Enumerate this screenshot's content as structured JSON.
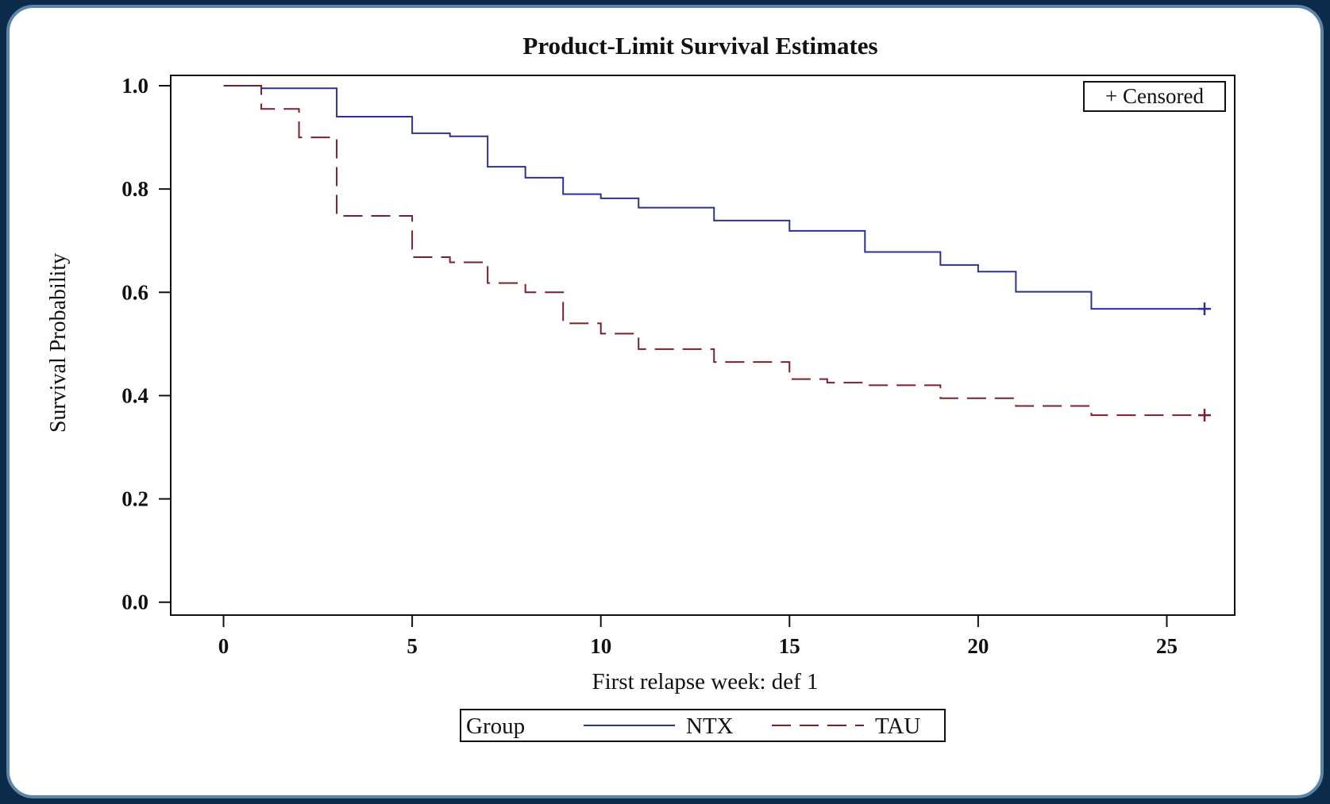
{
  "chart_data": {
    "type": "line",
    "title": "Product-Limit Survival Estimates",
    "xlabel": "First relapse week: def 1",
    "ylabel": "Survival Probability",
    "xlim": [
      -1.4,
      26.8
    ],
    "ylim": [
      -0.025,
      1.02
    ],
    "xticks": [
      "0",
      "5",
      "10",
      "15",
      "20",
      "25"
    ],
    "yticks": [
      "0.0",
      "0.2",
      "0.4",
      "0.6",
      "0.8",
      "1.0"
    ],
    "grid": false,
    "step": true,
    "censored_legend": "+ Censored",
    "legend": {
      "title": "Group",
      "position": "bottom"
    },
    "series": [
      {
        "name": "NTX",
        "color": "#2e3192",
        "dash": "solid",
        "x": [
          0,
          1,
          3,
          5,
          6,
          7,
          8,
          9,
          10,
          11,
          13,
          15,
          17,
          19,
          20,
          21,
          23,
          26
        ],
        "y": [
          1.0,
          0.995,
          0.94,
          0.908,
          0.902,
          0.843,
          0.822,
          0.79,
          0.782,
          0.764,
          0.739,
          0.719,
          0.678,
          0.653,
          0.64,
          0.601,
          0.568,
          0.568
        ],
        "censored": [
          [
            26,
            0.568
          ]
        ]
      },
      {
        "name": "TAU",
        "color": "#7a1f2b",
        "dash": "dashed",
        "x": [
          0,
          1,
          2,
          3,
          5,
          6,
          7,
          8,
          9,
          10,
          11,
          13,
          15,
          16,
          17,
          19,
          21,
          23,
          26
        ],
        "y": [
          1.0,
          0.955,
          0.9,
          0.748,
          0.668,
          0.658,
          0.618,
          0.6,
          0.54,
          0.52,
          0.49,
          0.465,
          0.432,
          0.425,
          0.42,
          0.395,
          0.38,
          0.362,
          0.362
        ],
        "censored": [
          [
            26,
            0.362
          ]
        ]
      }
    ]
  }
}
